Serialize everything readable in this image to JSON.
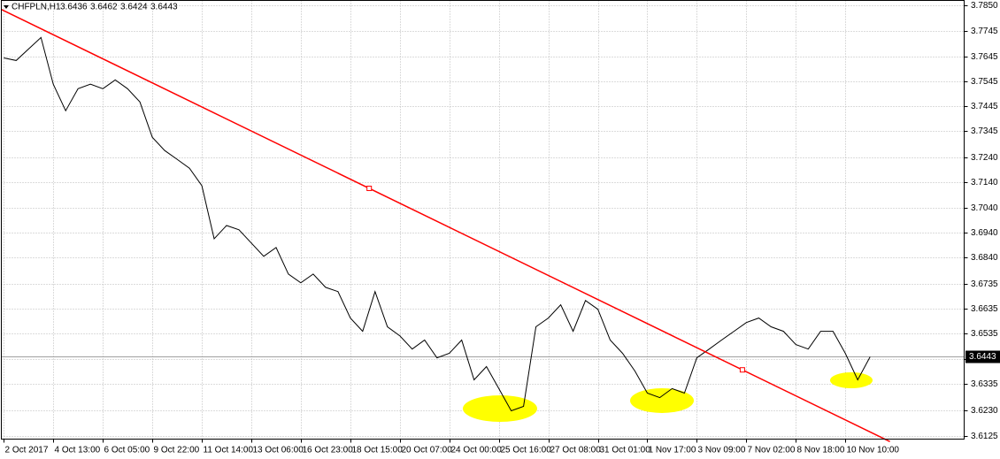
{
  "chart_data": {
    "type": "line",
    "title": "CHFPLN,H1",
    "ohlc": [
      3.6436,
      3.6462,
      3.6424,
      3.6443
    ],
    "x": [
      0,
      10,
      20,
      30,
      40,
      50,
      60,
      70,
      80,
      90,
      100,
      110,
      120,
      130,
      140,
      150,
      160,
      170,
      180,
      190,
      200,
      210,
      220,
      230,
      240,
      250,
      260,
      270,
      280,
      290,
      300,
      310,
      320,
      330,
      340,
      350,
      360,
      370,
      380,
      390,
      400,
      410,
      420,
      430,
      440,
      450,
      460,
      470,
      480,
      490,
      500,
      510,
      520,
      530,
      540,
      550,
      560,
      570,
      580,
      590,
      600,
      610,
      620,
      630,
      640,
      650,
      660,
      670,
      680,
      690,
      700
    ],
    "series": [
      {
        "name": "CHFPLN,H1",
        "color": "#000000",
        "values": [
          3.7638,
          3.7628,
          3.7674,
          3.772,
          3.7533,
          3.7427,
          3.7515,
          3.7533,
          3.7515,
          3.755,
          3.7515,
          3.7462,
          3.7321,
          3.7268,
          3.7233,
          3.7197,
          3.7127,
          3.6915,
          3.6968,
          3.6951,
          3.6898,
          3.6845,
          3.688,
          3.6774,
          3.6739,
          3.6774,
          3.6721,
          3.6704,
          3.6598,
          3.6545,
          3.6704,
          3.6563,
          3.6527,
          3.6474,
          3.651,
          3.6439,
          3.6457,
          3.651,
          3.6351,
          3.6404,
          3.6316,
          3.6227,
          3.6245,
          3.6563,
          3.6598,
          3.6651,
          3.6545,
          3.6668,
          3.6633,
          3.651,
          3.6457,
          3.6386,
          3.6298,
          3.628,
          3.6316,
          3.6298,
          3.6439,
          3.6474,
          3.651,
          3.6545,
          3.658,
          3.6598,
          3.6563,
          3.6545,
          3.6492,
          3.6474,
          3.6545,
          3.6545,
          3.6457,
          3.6351,
          3.6443
        ]
      }
    ],
    "trendline": {
      "color": "#ff0000",
      "x": [
        -2,
        716
      ],
      "values": [
        3.7832,
        3.6104
      ]
    },
    "current_price": 3.6443,
    "xlim": [
      -2,
      776
    ],
    "xticks": [
      {
        "value": 0,
        "label": "2 Oct 2017"
      },
      {
        "value": 40,
        "label": "4 Oct 13:00"
      },
      {
        "value": 80,
        "label": "6 Oct 05:00"
      },
      {
        "value": 120,
        "label": "9 Oct 22:00"
      },
      {
        "value": 160,
        "label": "11 Oct 14:00"
      },
      {
        "value": 200,
        "label": "13 Oct 06:00"
      },
      {
        "value": 240,
        "label": "16 Oct 23:00"
      },
      {
        "value": 280,
        "label": "18 Oct 15:00"
      },
      {
        "value": 320,
        "label": "20 Oct 07:00"
      },
      {
        "value": 360,
        "label": "24 Oct 00:00"
      },
      {
        "value": 400,
        "label": "25 Oct 16:00"
      },
      {
        "value": 440,
        "label": "27 Oct 08:00"
      },
      {
        "value": 480,
        "label": "31 Oct 01:00"
      },
      {
        "value": 520,
        "label": "1 Nov 17:00"
      },
      {
        "value": 560,
        "label": "3 Nov 09:00"
      },
      {
        "value": 600,
        "label": "7 Nov 02:00"
      },
      {
        "value": 640,
        "label": "8 Nov 18:00"
      },
      {
        "value": 680,
        "label": "10 Nov 10:00"
      }
    ],
    "ylim": [
      3.6114,
      3.7868
    ],
    "yticks": [
      {
        "value": 3.785,
        "label": "3.7850"
      },
      3.7745,
      3.7645,
      3.7545,
      3.7445,
      3.7345,
      {
        "value": 3.724,
        "label": "3.7240"
      },
      {
        "value": 3.714,
        "label": "3.7140"
      },
      {
        "value": 3.704,
        "label": "3.7040"
      },
      {
        "value": 3.694,
        "label": "3.6940"
      },
      {
        "value": 3.684,
        "label": "3.6840"
      },
      3.6735,
      3.6635,
      3.6535,
      3.6435,
      3.6335,
      {
        "value": 3.623,
        "label": "3.6230"
      },
      3.6125
    ],
    "grid": true
  }
}
